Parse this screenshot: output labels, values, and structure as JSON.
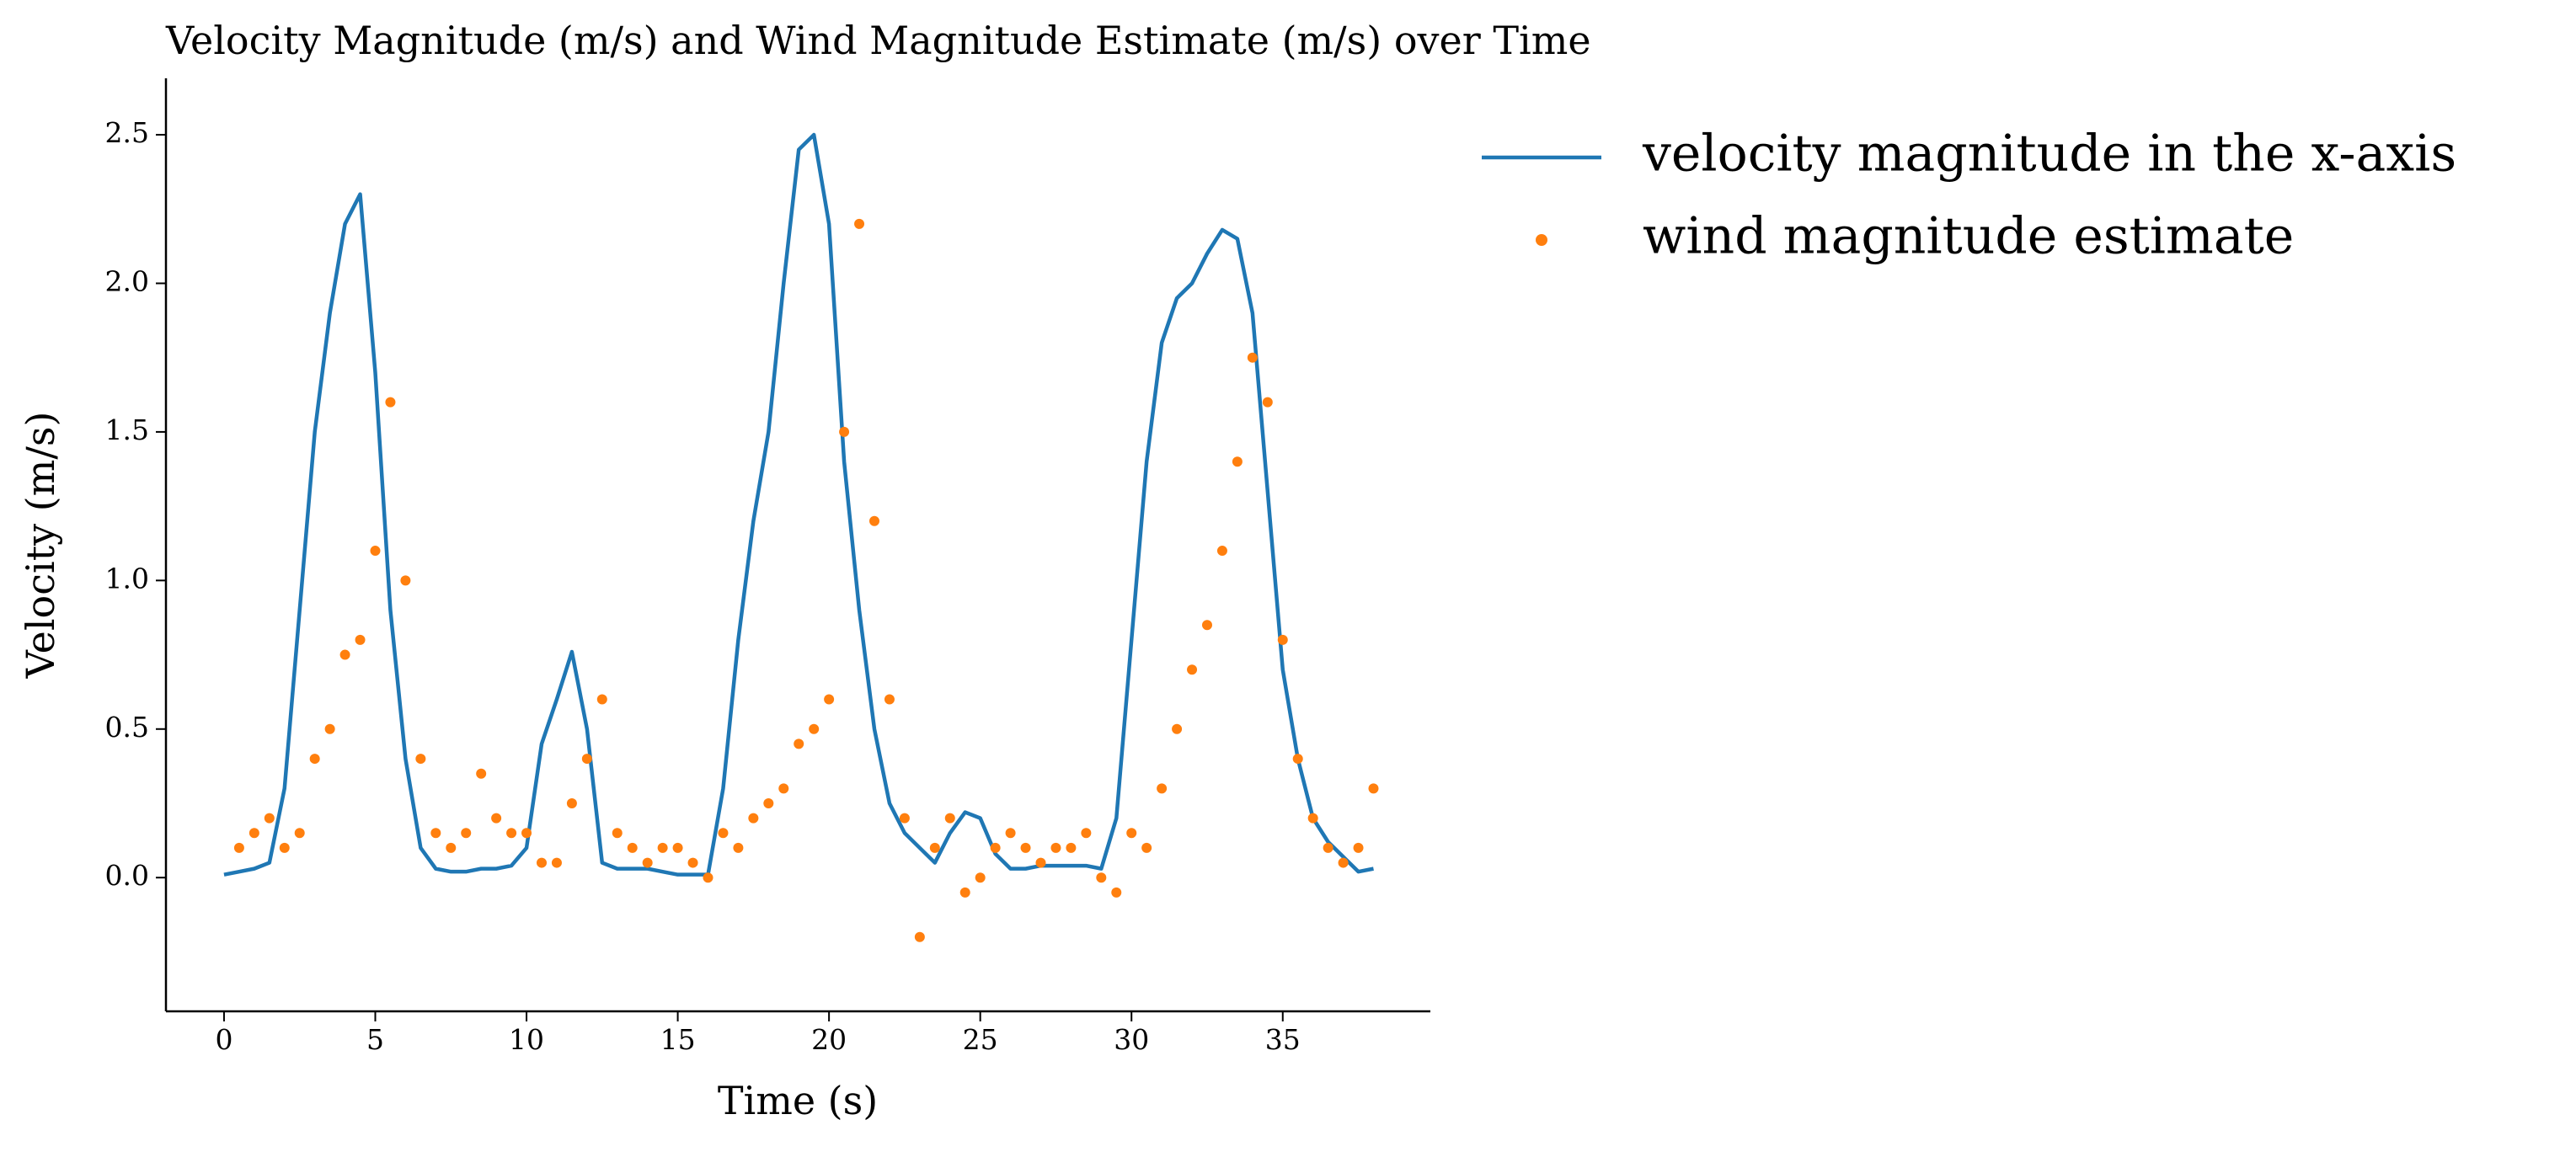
{
  "chart_data": {
    "type": "line",
    "title": "Velocity Magnitude (m/s) and Wind Magnitude Estimate (m/s) over Time",
    "xlabel": "Time (s)",
    "ylabel": "Velocity (m/s)",
    "xlim": [
      -1.92,
      39.88
    ],
    "ylim": [
      -0.45,
      2.69
    ],
    "xticks": [
      0,
      5,
      10,
      15,
      20,
      25,
      30,
      35
    ],
    "yticks": [
      {
        "value": 0,
        "label": "0.0"
      },
      0.5,
      {
        "value": 1,
        "label": "1.0"
      },
      1.5,
      {
        "value": 2,
        "label": "2.0"
      },
      2.5
    ],
    "legend": "outside-upper-right",
    "series": [
      {
        "name": "velocity magnitude in the x-axis",
        "color": "#1f77b4",
        "style": "line",
        "x": [
          0,
          0.5,
          1,
          1.5,
          2,
          2.5,
          3,
          3.5,
          4,
          4.5,
          5,
          5.5,
          6,
          6.5,
          7,
          7.5,
          8,
          8.5,
          9,
          9.5,
          10,
          10.5,
          11,
          11.5,
          12,
          12.5,
          13,
          13.5,
          14,
          14.5,
          15,
          15.5,
          16,
          16.5,
          17,
          17.5,
          18,
          18.5,
          19,
          19.5,
          20,
          20.5,
          21,
          21.5,
          22,
          22.5,
          23,
          23.5,
          24,
          24.5,
          25,
          25.5,
          26,
          26.5,
          27,
          27.5,
          28,
          28.5,
          29,
          29.5,
          30,
          30.5,
          31,
          31.5,
          32,
          32.5,
          33,
          33.5,
          34,
          34.5,
          35,
          35.5,
          36,
          36.5,
          37,
          37.5,
          38
        ],
        "values": [
          0.01,
          0.02,
          0.03,
          0.05,
          0.3,
          0.9,
          1.5,
          1.9,
          2.2,
          2.3,
          1.7,
          0.9,
          0.4,
          0.1,
          0.03,
          0.02,
          0.02,
          0.03,
          0.03,
          0.04,
          0.1,
          0.45,
          0.6,
          0.76,
          0.5,
          0.05,
          0.03,
          0.03,
          0.03,
          0.02,
          0.01,
          0.01,
          0.01,
          0.3,
          0.8,
          1.2,
          1.5,
          2.0,
          2.45,
          2.5,
          2.2,
          1.4,
          0.9,
          0.5,
          0.25,
          0.15,
          0.1,
          0.05,
          0.15,
          0.22,
          0.2,
          0.08,
          0.03,
          0.03,
          0.04,
          0.04,
          0.04,
          0.04,
          0.03,
          0.2,
          0.8,
          1.4,
          1.8,
          1.95,
          2.0,
          2.1,
          2.18,
          2.15,
          1.9,
          1.3,
          0.7,
          0.4,
          0.2,
          0.12,
          0.07,
          0.02,
          0.03
        ]
      },
      {
        "name": "wind magnitude estimate",
        "color": "#ff7f0e",
        "style": "points",
        "x": [
          0.5,
          1,
          1.5,
          2,
          2.5,
          3,
          3.5,
          4,
          4.5,
          5,
          5.5,
          6,
          6.5,
          7,
          7.5,
          8,
          8.5,
          9,
          9.5,
          10,
          10.5,
          11,
          11.5,
          12,
          12.5,
          13,
          13.5,
          14,
          14.5,
          15,
          15.5,
          16,
          16.5,
          17,
          17.5,
          18,
          18.5,
          19,
          19.5,
          20,
          20.5,
          21,
          21.5,
          22,
          22.5,
          23,
          23.5,
          24,
          24.5,
          25,
          25.5,
          26,
          26.5,
          27,
          27.5,
          28,
          28.5,
          29,
          29.5,
          30,
          30.5,
          31,
          31.5,
          32,
          32.5,
          33,
          33.5,
          34,
          34.5,
          35,
          35.5,
          36,
          36.5,
          37,
          37.5,
          38
        ],
        "values": [
          0.1,
          0.15,
          0.2,
          0.1,
          0.15,
          0.4,
          0.5,
          0.75,
          0.8,
          1.1,
          1.6,
          1.0,
          0.4,
          0.15,
          0.1,
          0.15,
          0.35,
          0.2,
          0.15,
          0.15,
          0.05,
          0.05,
          0.25,
          0.4,
          0.6,
          0.15,
          0.1,
          0.05,
          0.1,
          0.1,
          0.05,
          0.0,
          0.15,
          0.1,
          0.2,
          0.25,
          0.3,
          0.45,
          0.5,
          0.6,
          1.5,
          2.2,
          1.2,
          0.6,
          0.2,
          -0.2,
          0.1,
          0.2,
          -0.05,
          0.0,
          0.1,
          0.15,
          0.1,
          0.05,
          0.1,
          0.1,
          0.15,
          0.0,
          -0.05,
          0.15,
          0.1,
          0.3,
          0.5,
          0.7,
          0.85,
          1.1,
          1.4,
          1.75,
          1.6,
          0.8,
          0.4,
          0.2,
          0.1,
          0.05,
          0.1,
          0.3
        ]
      }
    ]
  }
}
